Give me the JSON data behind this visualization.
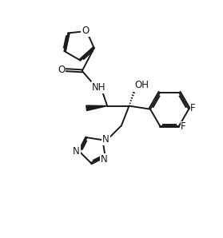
{
  "bg_color": "#ffffff",
  "line_color": "#1a1a1a",
  "line_width": 1.4,
  "font_size": 8.5,
  "figsize": [
    2.79,
    2.98
  ],
  "dpi": 100,
  "xlim": [
    0,
    10
  ],
  "ylim": [
    0,
    10
  ]
}
